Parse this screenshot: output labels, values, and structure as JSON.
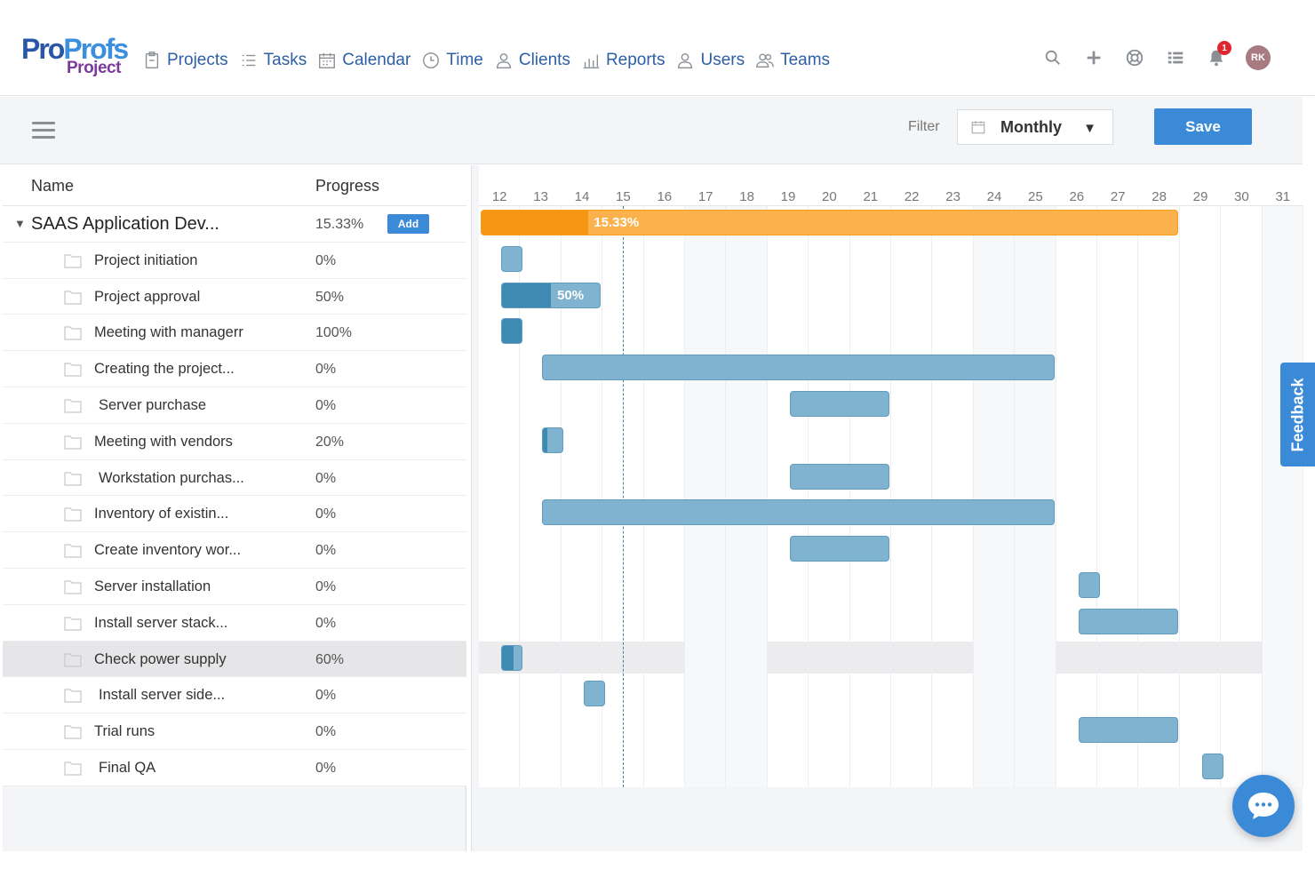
{
  "brand": {
    "logo_main_a": "Pro",
    "logo_main_b": "Profs",
    "logo_sub": "Project"
  },
  "nav": [
    {
      "label": "Projects",
      "icon": "clipboard-icon"
    },
    {
      "label": "Tasks",
      "icon": "list-icon"
    },
    {
      "label": "Calendar",
      "icon": "calendar-icon"
    },
    {
      "label": "Time",
      "icon": "clock-icon"
    },
    {
      "label": "Clients",
      "icon": "client-icon"
    },
    {
      "label": "Reports",
      "icon": "bar-chart-icon"
    },
    {
      "label": "Users",
      "icon": "user-icon"
    },
    {
      "label": "Teams",
      "icon": "team-icon"
    }
  ],
  "header_icons": [
    "search-icon",
    "plus-icon",
    "help-icon",
    "grid-list-icon",
    "bell-icon"
  ],
  "notifications": {
    "count": "1"
  },
  "user": {
    "initials": "RK"
  },
  "toolbar": {
    "filter_label": "Filter",
    "filter_value": "Monthly",
    "save_label": "Save"
  },
  "grid": {
    "col_name": "Name",
    "col_progress": "Progress",
    "add_label": "Add"
  },
  "days": [
    "12",
    "13",
    "14",
    "15",
    "16",
    "17",
    "18",
    "19",
    "20",
    "21",
    "22",
    "23",
    "24",
    "25",
    "26",
    "27",
    "28",
    "29",
    "30",
    "31"
  ],
  "project": {
    "name": "SAAS Application Dev...",
    "progress": "15.33%",
    "progress_value": 15.33,
    "start_day": 12,
    "end_day": 28
  },
  "tasks": [
    {
      "name": "Project initiation",
      "progress": "0%",
      "progress_value": 0,
      "start_day": 12,
      "end_day": 12
    },
    {
      "name": "Project approval",
      "progress": "50%",
      "progress_value": 50,
      "start_day": 12,
      "end_day": 14,
      "bar_label": "50%"
    },
    {
      "name": "Meeting with managerr",
      "progress": "100%",
      "progress_value": 100,
      "start_day": 12,
      "end_day": 12
    },
    {
      "name": "Creating the project...",
      "progress": "0%",
      "progress_value": 0,
      "start_day": 13,
      "end_day": 25
    },
    {
      "name": "Server purchase",
      "progress": "0%",
      "progress_value": 0,
      "start_day": 19,
      "end_day": 21
    },
    {
      "name": "Meeting with vendors",
      "progress": "20%",
      "progress_value": 20,
      "start_day": 13,
      "end_day": 13
    },
    {
      "name": "Workstation purchas...",
      "progress": "0%",
      "progress_value": 0,
      "start_day": 19,
      "end_day": 21
    },
    {
      "name": "Inventory of existin...",
      "progress": "0%",
      "progress_value": 0,
      "start_day": 13,
      "end_day": 25
    },
    {
      "name": "Create inventory wor...",
      "progress": "0%",
      "progress_value": 0,
      "start_day": 19,
      "end_day": 21
    },
    {
      "name": "Server installation",
      "progress": "0%",
      "progress_value": 0,
      "start_day": 26,
      "end_day": 26
    },
    {
      "name": "Install server stack...",
      "progress": "0%",
      "progress_value": 0,
      "start_day": 26,
      "end_day": 28
    },
    {
      "name": "Check power supply",
      "progress": "60%",
      "progress_value": 60,
      "start_day": 12,
      "end_day": 12,
      "selected": true
    },
    {
      "name": "Install server side...",
      "progress": "0%",
      "progress_value": 0,
      "start_day": 14,
      "end_day": 14
    },
    {
      "name": "Trial runs",
      "progress": "0%",
      "progress_value": 0,
      "start_day": 26,
      "end_day": 28
    },
    {
      "name": "Final QA",
      "progress": "0%",
      "progress_value": 0,
      "start_day": 29,
      "end_day": 29
    }
  ],
  "today_day": 15,
  "widgets": {
    "feedback_label": "Feedback"
  },
  "colors": {
    "accent": "#3b8ad8",
    "project_bar": "#fbb24c",
    "project_fill": "#f59713",
    "task_bar": "#7fb3cf",
    "task_fill": "#3f8ab2",
    "nav_text": "#2c5fa6"
  }
}
